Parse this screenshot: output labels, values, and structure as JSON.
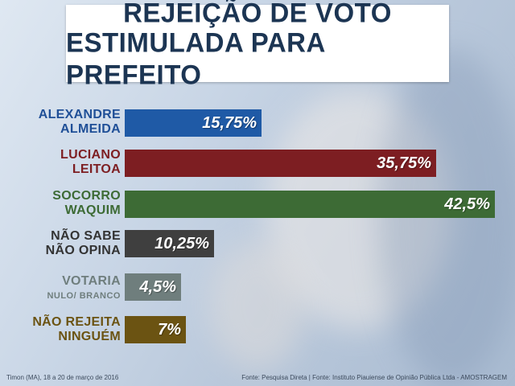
{
  "title": {
    "line1": "REJEIÇÃO DE VOTO",
    "line2": "ESTIMULADA PARA PREFEITO"
  },
  "chart_data": {
    "type": "bar",
    "orientation": "horizontal",
    "title": "REJEIÇÃO DE VOTO ESTIMULADA PARA PREFEITO",
    "categories": [
      "ALEXANDRE ALMEIDA",
      "LUCIANO LEITOA",
      "SOCORRO WAQUIM",
      "NÃO SABE NÃO OPINA",
      "VOTARIA NULO/ BRANCO",
      "NÃO REJEITA NINGUÉM"
    ],
    "values": [
      15.75,
      35.75,
      42.5,
      10.25,
      4.5,
      7
    ],
    "value_labels": [
      "15,75%",
      "35,75%",
      "42,5%",
      "10,25%",
      "4,5%",
      "7%"
    ],
    "colors": [
      "#1f5aa6",
      "#7d1e22",
      "#3d6b35",
      "#3f3f3f",
      "#6f7e7d",
      "#6b5312"
    ],
    "label_colors": [
      "#1f4f97",
      "#7d1e22",
      "#3d6b35",
      "#333333",
      "#6f7e7d",
      "#6b5312"
    ],
    "xlim": [
      0,
      42.5
    ],
    "xlabel": "",
    "ylabel": ""
  },
  "labels": [
    {
      "line1": "ALEXANDRE",
      "line2": "ALMEIDA"
    },
    {
      "line1": "LUCIANO",
      "line2": "LEITOA"
    },
    {
      "line1": "SOCORRO",
      "line2": "WAQUIM"
    },
    {
      "line1": "NÃO SABE",
      "line2": "NÃO OPINA"
    },
    {
      "line1": "VOTARIA",
      "line2": "NULO/ BRANCO"
    },
    {
      "line1": "NÃO REJEITA",
      "line2": "NINGUÉM"
    }
  ],
  "footer": {
    "left": "Timon (MA), 18 a 20 de março de 2016",
    "right": "Fonte: Pesquisa Direta  |  Fonte: Instituto Piauiense de Opinião Pública Ltda - AMOSTRAGEM"
  }
}
